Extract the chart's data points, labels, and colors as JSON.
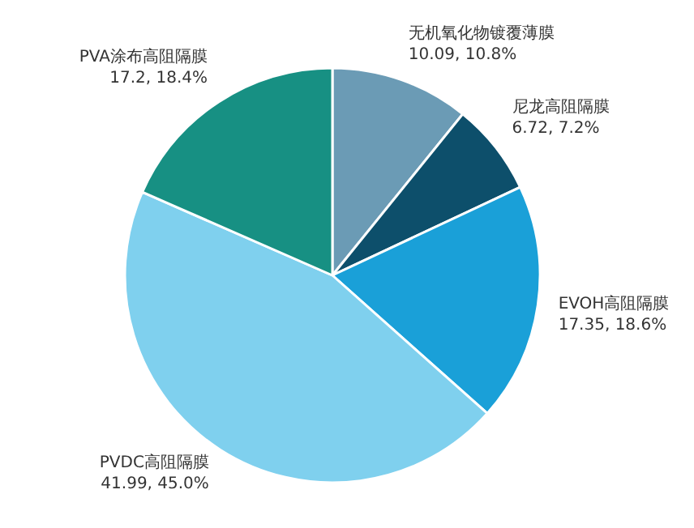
{
  "chart_data": {
    "type": "pie",
    "categories": [
      "无机氧化物镀覆薄膜",
      "尼龙高阻隔膜",
      "EVOH高阻隔膜",
      "PVDC高阻隔膜",
      "PVA涂布高阻隔膜"
    ],
    "values": [
      10.09,
      6.72,
      17.35,
      41.99,
      17.2
    ],
    "value_labels": [
      "10.09, 10.8%",
      "6.72, 7.2%",
      "17.35, 18.6%",
      "41.99, 45.0%",
      "17.2, 18.4%"
    ],
    "colors": [
      "#6b9bb5",
      "#0d4f6b",
      "#1aa0d8",
      "#7fd0ee",
      "#179083"
    ]
  }
}
